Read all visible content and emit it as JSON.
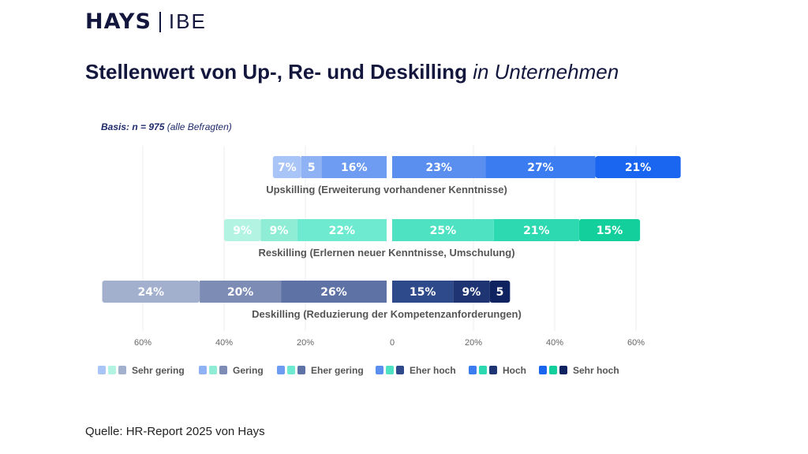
{
  "header": {
    "brand": "HAYS",
    "partner": "IBE"
  },
  "title": {
    "main": "Stellenwert von Up-, Re- und Deskilling",
    "italic": "in Unternehmen"
  },
  "basis": {
    "bold": "Basis: n = 975",
    "rest": "(alle Befragten)"
  },
  "source": "Quelle: HR-Report 2025 von Hays",
  "chart_data": {
    "type": "bar",
    "orientation": "horizontal diverging stacked",
    "unit": "%",
    "xlim": [
      -70,
      70
    ],
    "x_ticks": [
      "60%",
      "40%",
      "20%",
      "0",
      "20%",
      "40%",
      "60%"
    ],
    "grid": true,
    "legend_position": "bottom",
    "categories_order": [
      "Sehr gering",
      "Gering",
      "Eher gering",
      "Eher hoch",
      "Hoch",
      "Sehr hoch"
    ],
    "rows": [
      {
        "label": "Upskilling (Erweiterung vorhandener Kenntnisse)",
        "values": [
          7,
          5,
          16,
          23,
          27,
          21
        ],
        "labels": [
          "7%",
          "5",
          "16%",
          "23%",
          "27%",
          "21%"
        ],
        "colors": [
          "#a9c4f6",
          "#8fb2f5",
          "#6d9cf2",
          "#5a8ff0",
          "#3b7cf0",
          "#1b66f0"
        ]
      },
      {
        "label": "Reskilling (Erlernen neuer Kenntnisse, Umschulung)",
        "values": [
          9,
          9,
          22,
          25,
          21,
          15
        ],
        "labels": [
          "9%",
          "9%",
          "22%",
          "25%",
          "21%",
          "15%"
        ],
        "colors": [
          "#b3f3e2",
          "#90edd5",
          "#6deacf",
          "#4fe2c2",
          "#2dd9b0",
          "#12cf9c"
        ]
      },
      {
        "label": "Deskilling (Reduzierung der Kompetenzanforderungen)",
        "values": [
          24,
          20,
          26,
          15,
          9,
          5
        ],
        "labels": [
          "24%",
          "20%",
          "26%",
          "15%",
          "9%",
          "5"
        ],
        "colors": [
          "#a3b0cd",
          "#7d8cb4",
          "#5f72a6",
          "#2f4a8b",
          "#1f3573",
          "#0f2360"
        ]
      }
    ],
    "legend": [
      "Sehr gering",
      "Gering",
      "Eher gering",
      "Eher hoch",
      "Hoch",
      "Sehr hoch"
    ]
  }
}
